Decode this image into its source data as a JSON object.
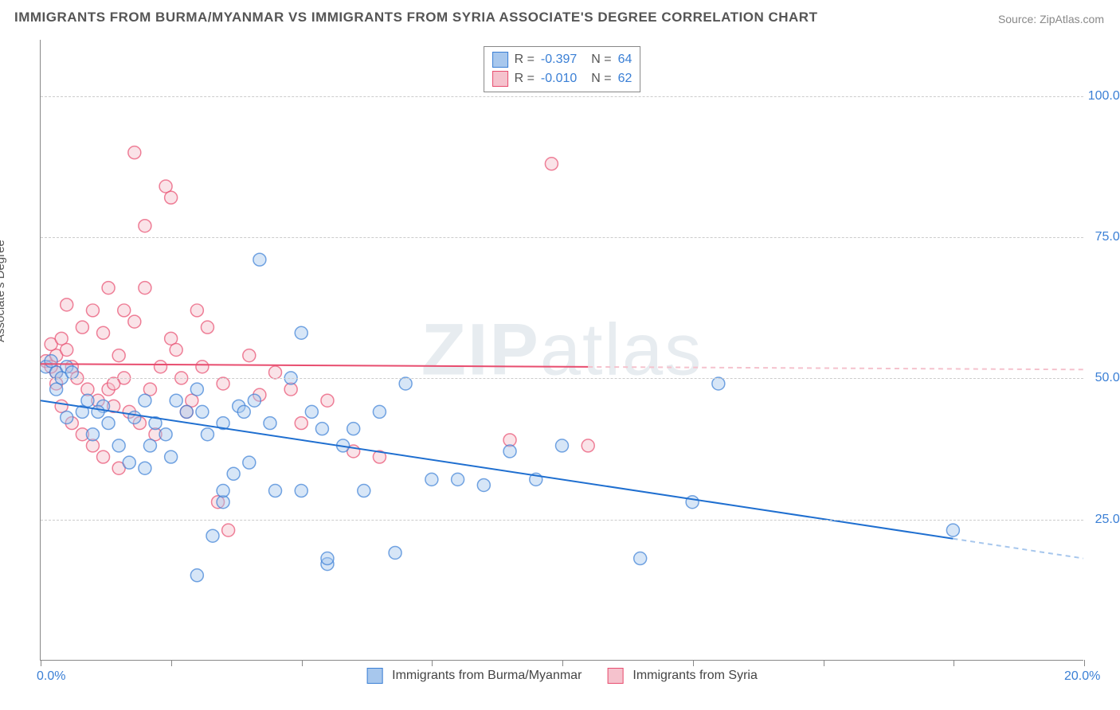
{
  "title": "IMMIGRANTS FROM BURMA/MYANMAR VS IMMIGRANTS FROM SYRIA ASSOCIATE'S DEGREE CORRELATION CHART",
  "source": "Source: ZipAtlas.com",
  "ylabel": "Associate's Degree",
  "watermark_bold": "ZIP",
  "watermark_rest": "atlas",
  "chart": {
    "type": "scatter",
    "background_color": "#ffffff",
    "grid_color": "#cccccc",
    "axis_color": "#888888",
    "text_color": "#555555",
    "tick_label_color": "#3a7fd5",
    "xlim": [
      0,
      20
    ],
    "ylim": [
      0,
      110
    ],
    "x_ticks": [
      0,
      2.5,
      5,
      7.5,
      10,
      12.5,
      15,
      17.5,
      20
    ],
    "x_tick_labels": {
      "0": "0.0%",
      "20": "20.0%"
    },
    "y_gridlines": [
      25,
      50,
      75,
      100
    ],
    "y_tick_labels": {
      "25": "25.0%",
      "50": "50.0%",
      "75": "75.0%",
      "100": "100.0%"
    },
    "marker_radius": 8,
    "marker_opacity": 0.45,
    "marker_stroke_width": 1.5,
    "trend_line_width": 2,
    "series": [
      {
        "name": "Immigrants from Burma/Myanmar",
        "fill_color": "#a7c7ed",
        "stroke_color": "#3a7fd5",
        "trend_color": "#1f6fd0",
        "trend_dash_color": "#a7c7ed",
        "R": "-0.397",
        "N": "64",
        "trend": {
          "x1": 0,
          "y1": 46,
          "x2": 20,
          "y2": 18
        },
        "points": [
          [
            0.1,
            52
          ],
          [
            0.3,
            51
          ],
          [
            0.2,
            53
          ],
          [
            0.5,
            52
          ],
          [
            0.4,
            50
          ],
          [
            0.6,
            51
          ],
          [
            0.3,
            48
          ],
          [
            0.8,
            44
          ],
          [
            1.0,
            40
          ],
          [
            0.5,
            43
          ],
          [
            1.2,
            45
          ],
          [
            1.5,
            38
          ],
          [
            1.8,
            43
          ],
          [
            2.0,
            46
          ],
          [
            2.2,
            42
          ],
          [
            2.5,
            36
          ],
          [
            2.0,
            34
          ],
          [
            2.8,
            44
          ],
          [
            3.0,
            48
          ],
          [
            3.2,
            40
          ],
          [
            3.5,
            42
          ],
          [
            3.5,
            28
          ],
          [
            3.8,
            45
          ],
          [
            4.0,
            35
          ],
          [
            4.2,
            71
          ],
          [
            4.8,
            50
          ],
          [
            5.0,
            58
          ],
          [
            5.2,
            44
          ],
          [
            5.5,
            17
          ],
          [
            5.8,
            38
          ],
          [
            6.0,
            41
          ],
          [
            3.0,
            15
          ],
          [
            3.3,
            22
          ],
          [
            3.5,
            30
          ],
          [
            4.5,
            30
          ],
          [
            5.0,
            30
          ],
          [
            5.5,
            18
          ],
          [
            6.2,
            30
          ],
          [
            6.8,
            19
          ],
          [
            7.0,
            49
          ],
          [
            7.5,
            32
          ],
          [
            8.0,
            32
          ],
          [
            8.5,
            31
          ],
          [
            9.0,
            37
          ],
          [
            9.5,
            32
          ],
          [
            10.0,
            38
          ],
          [
            11.5,
            18
          ],
          [
            12.5,
            28
          ],
          [
            13.0,
            49
          ],
          [
            17.5,
            23
          ],
          [
            2.6,
            46
          ],
          [
            3.1,
            44
          ],
          [
            2.4,
            40
          ],
          [
            1.7,
            35
          ],
          [
            1.3,
            42
          ],
          [
            0.9,
            46
          ],
          [
            1.1,
            44
          ],
          [
            2.1,
            38
          ],
          [
            4.4,
            42
          ],
          [
            5.4,
            41
          ],
          [
            3.7,
            33
          ],
          [
            3.9,
            44
          ],
          [
            4.1,
            46
          ],
          [
            6.5,
            44
          ]
        ]
      },
      {
        "name": "Immigrants from Syria",
        "fill_color": "#f5c2cd",
        "stroke_color": "#e84d6f",
        "trend_color": "#e84d6f",
        "trend_dash_color": "#f5c2cd",
        "R": "-0.010",
        "N": "62",
        "trend": {
          "x1": 0,
          "y1": 52.5,
          "x2": 20,
          "y2": 51.5
        },
        "points": [
          [
            0.1,
            53
          ],
          [
            0.3,
            54
          ],
          [
            0.2,
            56
          ],
          [
            0.5,
            55
          ],
          [
            0.4,
            57
          ],
          [
            0.6,
            52
          ],
          [
            0.3,
            51
          ],
          [
            0.8,
            59
          ],
          [
            1.0,
            62
          ],
          [
            0.5,
            63
          ],
          [
            1.2,
            58
          ],
          [
            1.5,
            54
          ],
          [
            1.8,
            60
          ],
          [
            2.0,
            66
          ],
          [
            1.3,
            48
          ],
          [
            1.6,
            50
          ],
          [
            0.7,
            50
          ],
          [
            0.9,
            48
          ],
          [
            1.1,
            46
          ],
          [
            1.4,
            45
          ],
          [
            1.7,
            44
          ],
          [
            1.9,
            42
          ],
          [
            2.1,
            48
          ],
          [
            2.3,
            52
          ],
          [
            2.5,
            57
          ],
          [
            2.7,
            50
          ],
          [
            2.9,
            46
          ],
          [
            3.1,
            52
          ],
          [
            1.8,
            90
          ],
          [
            2.4,
            84
          ],
          [
            2.5,
            82
          ],
          [
            2.0,
            77
          ],
          [
            3.0,
            62
          ],
          [
            3.2,
            59
          ],
          [
            3.5,
            49
          ],
          [
            4.0,
            54
          ],
          [
            4.5,
            51
          ],
          [
            5.0,
            42
          ],
          [
            5.5,
            46
          ],
          [
            6.0,
            37
          ],
          [
            6.5,
            36
          ],
          [
            9.0,
            39
          ],
          [
            9.8,
            88
          ],
          [
            10.5,
            38
          ],
          [
            0.4,
            45
          ],
          [
            0.6,
            42
          ],
          [
            0.8,
            40
          ],
          [
            1.0,
            38
          ],
          [
            1.2,
            36
          ],
          [
            1.5,
            34
          ],
          [
            1.3,
            66
          ],
          [
            1.6,
            62
          ],
          [
            1.4,
            49
          ],
          [
            2.2,
            40
          ],
          [
            2.8,
            44
          ],
          [
            2.6,
            55
          ],
          [
            3.4,
            28
          ],
          [
            3.6,
            23
          ],
          [
            4.2,
            47
          ],
          [
            4.8,
            48
          ],
          [
            0.2,
            52
          ],
          [
            0.3,
            49
          ]
        ]
      }
    ]
  },
  "legend_bottom": {
    "series1_label": "Immigrants from Burma/Myanmar",
    "series2_label": "Immigrants from Syria"
  }
}
